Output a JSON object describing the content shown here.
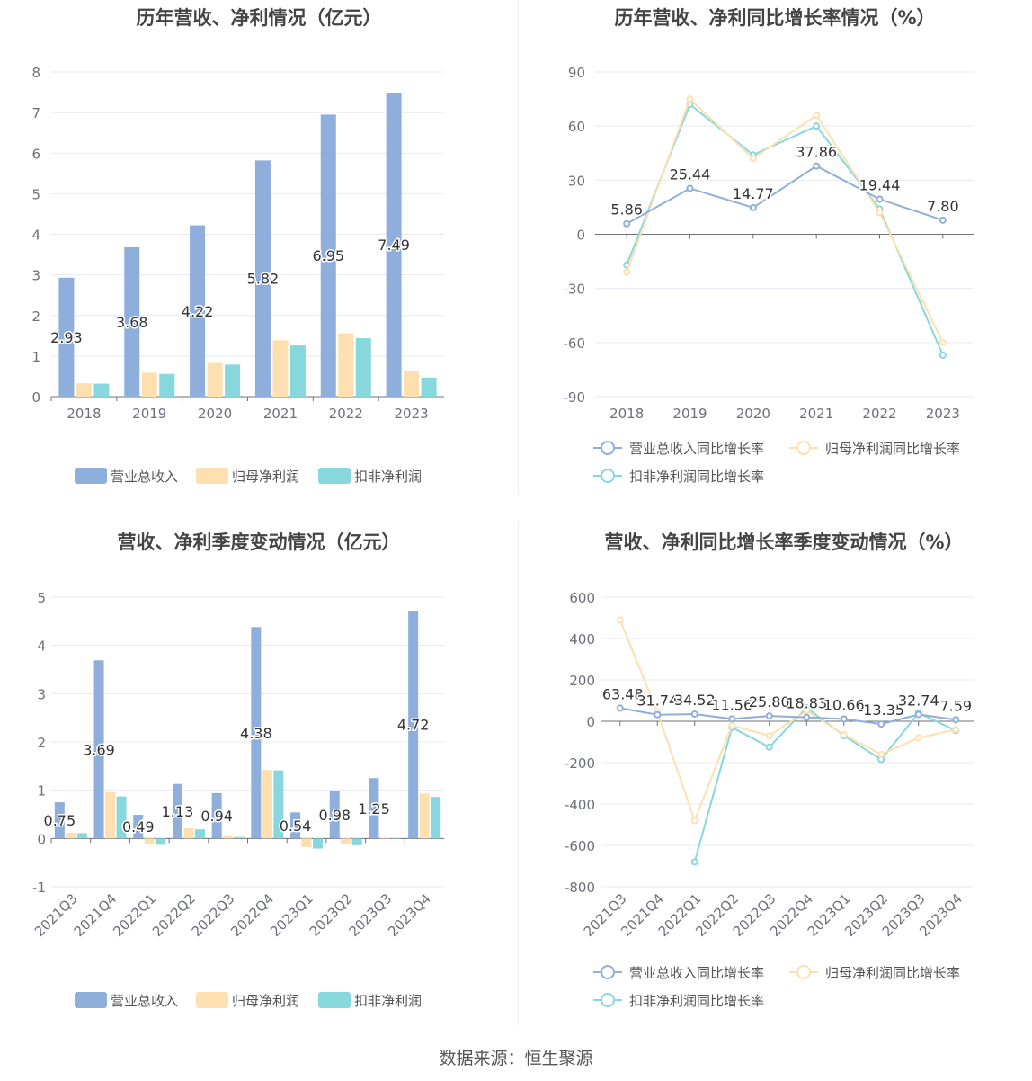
{
  "footer": "数据来源：恒生聚源",
  "colors": {
    "revenue": "#8eaedc",
    "net_profit": "#fedfaf",
    "deducted_profit": "#86d8dc"
  },
  "charts": [
    {
      "id": "annual_bar",
      "title": "历年营收、净利情况（亿元）",
      "chart_data": {
        "type": "bar",
        "categories": [
          "2018",
          "2019",
          "2020",
          "2021",
          "2022",
          "2023"
        ],
        "series": [
          {
            "name": "营业总收入",
            "values": [
              2.93,
              3.68,
              4.22,
              5.82,
              6.95,
              7.49
            ],
            "labeled": true
          },
          {
            "name": "归母净利润",
            "values": [
              0.33,
              0.59,
              0.83,
              1.39,
              1.56,
              0.63
            ]
          },
          {
            "name": "扣非净利润",
            "values": [
              0.32,
              0.56,
              0.79,
              1.26,
              1.44,
              0.47
            ]
          }
        ],
        "ylim": [
          0,
          8
        ],
        "yticks": [
          0,
          1,
          2,
          3,
          4,
          5,
          6,
          7,
          8
        ],
        "legend": "bottom"
      }
    },
    {
      "id": "annual_line",
      "title": "历年营收、净利同比增长率情况（%）",
      "chart_data": {
        "type": "line",
        "categories": [
          "2018",
          "2019",
          "2020",
          "2021",
          "2022",
          "2023"
        ],
        "series": [
          {
            "name": "营业总收入同比增长率",
            "values": [
              5.86,
              25.44,
              14.77,
              37.86,
              19.44,
              7.8
            ],
            "labels": [
              "5.86",
              "25.44",
              "14.77",
              "37.86",
              "19.44",
              "7.80"
            ]
          },
          {
            "name": "归母净利润同比增长率",
            "values": [
              -21,
              75,
              42,
              66,
              12,
              -60
            ]
          },
          {
            "name": "扣非净利润同比增长率",
            "values": [
              -17,
              72,
              44,
              60,
              14,
              -67
            ]
          }
        ],
        "ylim": [
          -90,
          90
        ],
        "yticks": [
          -90,
          -60,
          -30,
          0,
          30,
          60,
          90
        ],
        "legend": "bottom"
      }
    },
    {
      "id": "quarter_bar",
      "title": "营收、净利季度变动情况（亿元）",
      "chart_data": {
        "type": "bar",
        "categories": [
          "2021Q3",
          "2021Q4",
          "2022Q1",
          "2022Q2",
          "2022Q3",
          "2022Q4",
          "2023Q1",
          "2023Q2",
          "2023Q3",
          "2023Q4"
        ],
        "series": [
          {
            "name": "营业总收入",
            "values": [
              0.75,
              3.69,
              0.49,
              1.13,
              0.94,
              4.38,
              0.54,
              0.98,
              1.25,
              4.72
            ],
            "labeled": true
          },
          {
            "name": "归母净利润",
            "values": [
              0.12,
              0.96,
              -0.12,
              0.21,
              0.05,
              1.42,
              -0.18,
              -0.12,
              0.0,
              0.93
            ]
          },
          {
            "name": "扣非净利润",
            "values": [
              0.11,
              0.87,
              -0.13,
              0.19,
              0.03,
              1.41,
              -0.21,
              -0.14,
              0.0,
              0.86
            ]
          }
        ],
        "ylim": [
          -1,
          5
        ],
        "yticks": [
          -1,
          0,
          1,
          2,
          3,
          4,
          5
        ],
        "legend": "bottom"
      }
    },
    {
      "id": "quarter_line",
      "title": "营收、净利同比增长率季度变动情况（%）",
      "chart_data": {
        "type": "line",
        "categories": [
          "2021Q3",
          "2021Q4",
          "2022Q1",
          "2022Q2",
          "2022Q3",
          "2022Q4",
          "2023Q1",
          "2023Q2",
          "2023Q3",
          "2023Q4"
        ],
        "series": [
          {
            "name": "营业总收入同比增长率",
            "values": [
              63.48,
              31.74,
              34.52,
              11.56,
              25.8,
              18.83,
              10.66,
              -13.35,
              32.74,
              7.59
            ],
            "labels": [
              "63.48",
              "31.74",
              "34.52",
              "11.56",
              "25.80",
              "18.83",
              "10.66",
              "-13.35",
              "32.74",
              "7.59"
            ]
          },
          {
            "name": "归母净利润同比增长率",
            "values": [
              490,
              45,
              -480,
              -20,
              -70,
              50,
              -65,
              -160,
              -80,
              -40
            ]
          },
          {
            "name": "扣非净利润同比增长率",
            "values": [
              null,
              null,
              -680,
              -30,
              -125,
              65,
              -70,
              -185,
              40,
              -45
            ]
          }
        ],
        "ylim": [
          -800,
          600
        ],
        "yticks": [
          -800,
          -600,
          -400,
          -200,
          0,
          200,
          400,
          600
        ],
        "legend": "bottom"
      }
    }
  ]
}
